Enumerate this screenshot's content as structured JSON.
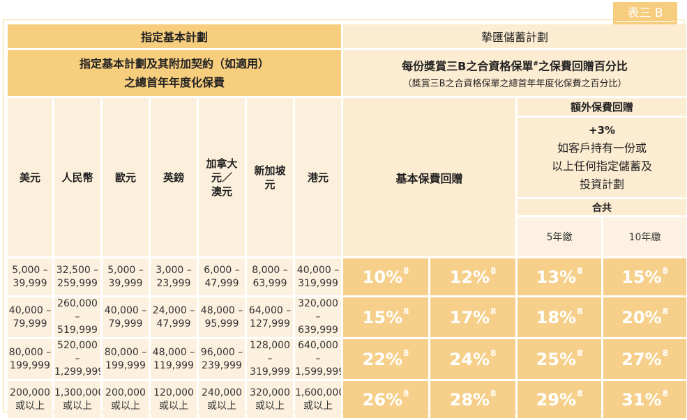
{
  "tag": "表三 B",
  "left_header": {
    "title": "指定基本計劃",
    "sub_line1": "指定基本計劃及其附加契約（如適用）",
    "sub_line2": "之總首年年度化保費"
  },
  "right_header": {
    "title": "摯匯儲蓄計劃",
    "sub_main": "每份獎賞三B之合資格保單",
    "sub_main_mark": "#",
    "sub_main_rest": "之保費回贈百分比",
    "sub_note": "（獎賞三B之合資格保單之總首年年度化保費之百分比）",
    "basic_label": "基本保費回贈",
    "extra_label": "額外保費回贈",
    "extra_plus": "+3%",
    "extra_desc1": "如客戶持有一份或",
    "extra_desc2": "以上任何指定儲蓄及",
    "extra_desc3": "投資計劃",
    "total_label": "合共",
    "term_5": "5年繳",
    "term_10": "10年繳"
  },
  "currencies": [
    {
      "l1": "美元",
      "l2": "",
      "l3": ""
    },
    {
      "l1": "人民幣",
      "l2": "",
      "l3": ""
    },
    {
      "l1": "歐元",
      "l2": "",
      "l3": ""
    },
    {
      "l1": "英鎊",
      "l2": "",
      "l3": ""
    },
    {
      "l1": "加拿大",
      "l2": "元／",
      "l3": "澳元"
    },
    {
      "l1": "新加坡",
      "l2": "元",
      "l3": ""
    },
    {
      "l1": "港元",
      "l2": "",
      "l3": ""
    }
  ],
  "footnote_mark": "8",
  "rows": [
    {
      "bands": [
        [
          "5,000 –",
          "39,999"
        ],
        [
          "32,500 –",
          "259,999"
        ],
        [
          "5,000 –",
          "39,999"
        ],
        [
          "3,000 –",
          "23,999"
        ],
        [
          "6,000 –",
          "47,999"
        ],
        [
          "8,000 –",
          "63,999"
        ],
        [
          "40,000 –",
          "319,999"
        ]
      ],
      "rates": [
        "10%",
        "12%",
        "13%",
        "15%"
      ]
    },
    {
      "bands": [
        [
          "40,000 –",
          "79,999"
        ],
        [
          "260,000 –",
          "519,999"
        ],
        [
          "40,000 –",
          "79,999"
        ],
        [
          "24,000 –",
          "47,999"
        ],
        [
          "48,000 –",
          "95,999"
        ],
        [
          "64,000 –",
          "127,999"
        ],
        [
          "320,000 –",
          "639,999"
        ]
      ],
      "rates": [
        "15%",
        "17%",
        "18%",
        "20%"
      ]
    },
    {
      "bands": [
        [
          "80,000 –",
          "199,999"
        ],
        [
          "520,000 –",
          "1,299,999"
        ],
        [
          "80,000 –",
          "199,999"
        ],
        [
          "48,000 –",
          "119,999"
        ],
        [
          "96,000 –",
          "239,999"
        ],
        [
          "128,000 –",
          "319,999"
        ],
        [
          "640,000 –",
          "1,599,999"
        ]
      ],
      "rates": [
        "22%",
        "24%",
        "25%",
        "27%"
      ]
    },
    {
      "bands": [
        [
          "200,000",
          "或以上"
        ],
        [
          "1,300,000",
          "或以上"
        ],
        [
          "200,000",
          "或以上"
        ],
        [
          "120,000",
          "或以上"
        ],
        [
          "240,000",
          "或以上"
        ],
        [
          "320,000",
          "或以上"
        ],
        [
          "1,600,000",
          "或以上"
        ]
      ],
      "rates": [
        "26%",
        "28%",
        "29%",
        "31%"
      ]
    }
  ]
}
